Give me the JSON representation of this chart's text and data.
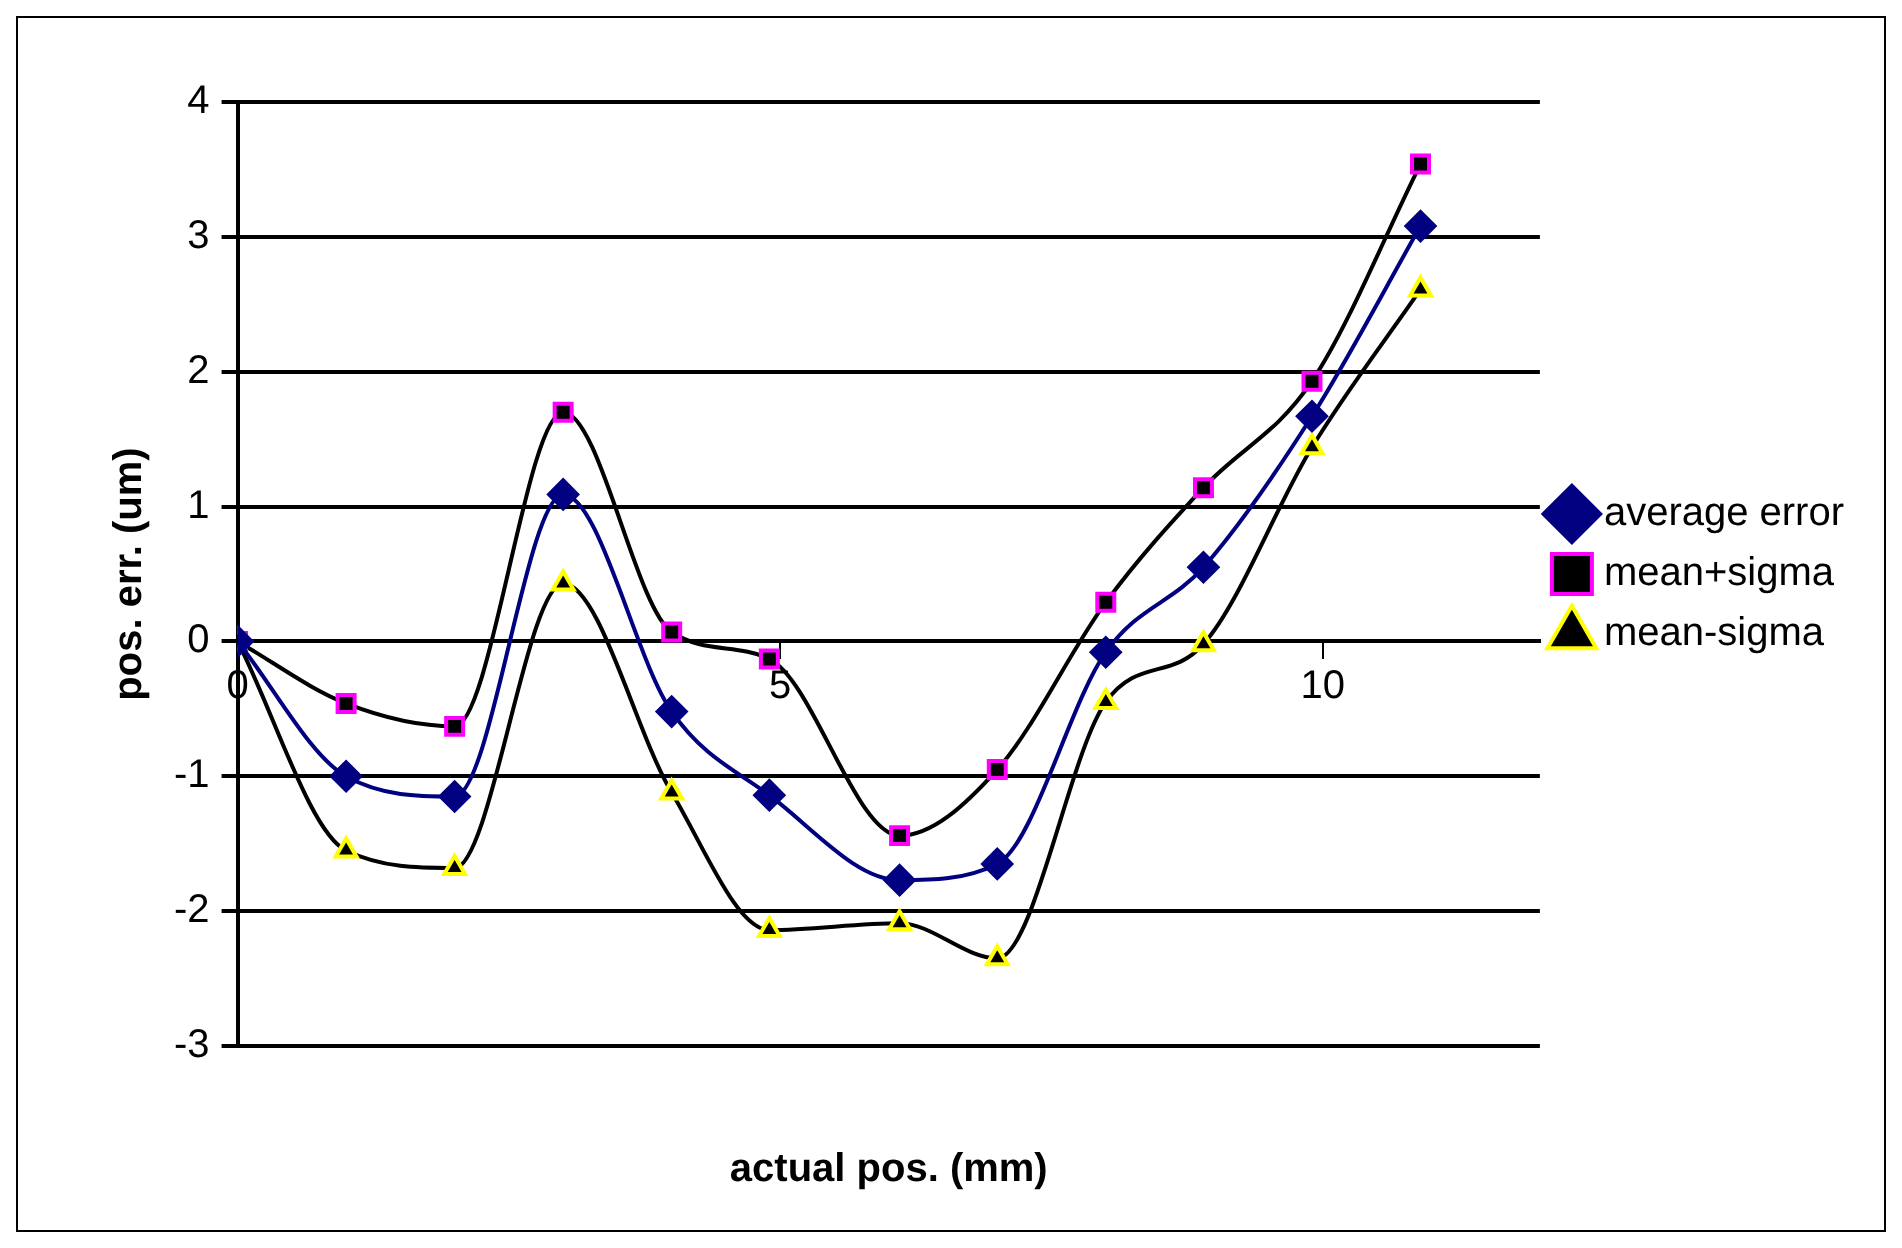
{
  "chart_data": {
    "type": "line",
    "xlabel": "actual pos. (mm)",
    "ylabel": "pos. err. (um)",
    "x": [
      0,
      1,
      2,
      3,
      4,
      4.9,
      6.1,
      7,
      8,
      8.9,
      9.9,
      10.9
    ],
    "xlim": [
      0,
      12
    ],
    "xticks": [
      0,
      5,
      10
    ],
    "ylim": [
      -3,
      4
    ],
    "yticks": [
      -3,
      -2,
      -1,
      0,
      1,
      2,
      3,
      4
    ],
    "grid": "y",
    "legend": "right",
    "series": [
      {
        "name": "average error",
        "color": "#000080",
        "marker": "diamond",
        "values": [
          0,
          -1.0,
          -1.15,
          1.09,
          -0.52,
          -1.14,
          -1.77,
          -1.65,
          -0.08,
          0.55,
          1.67,
          3.08
        ]
      },
      {
        "name": "mean+sigma",
        "color": "#ff00ff",
        "marker": "square",
        "values": [
          0,
          -0.46,
          -0.63,
          1.7,
          0.07,
          -0.13,
          -1.44,
          -0.95,
          0.29,
          1.14,
          1.93,
          3.54
        ]
      },
      {
        "name": "mean-sigma",
        "color": "#ffff00",
        "marker": "triangle",
        "values": [
          0,
          -1.55,
          -1.68,
          0.43,
          -1.12,
          -2.14,
          -2.09,
          -2.35,
          -0.45,
          -0.02,
          1.44,
          2.61
        ]
      }
    ]
  }
}
